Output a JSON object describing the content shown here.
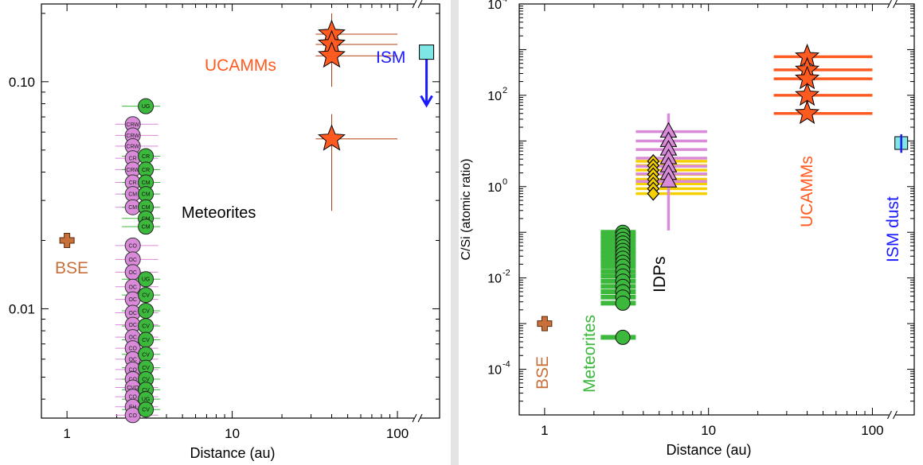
{
  "chart_data": [
    {
      "type": "scatter",
      "xlabel": "Distance (au)",
      "ylabel": "",
      "xscale": "log",
      "yscale": "log",
      "xlim": [
        0.7,
        180
      ],
      "ylim": [
        0.0033,
        0.22
      ],
      "x_ticks": [
        "1",
        "10",
        "100"
      ],
      "y_ticks": [
        "0.10",
        "0.01"
      ],
      "x_break_after": 100,
      "colors": {
        "meteorite_pink": "#d98ad9",
        "meteorite_green": "#3cb83c",
        "ucamm": "#ff5a1f",
        "bse": "#c8703a",
        "ism_fill": "#7fe6e6",
        "ism_arrow": "#1a1aff"
      },
      "annotations": [
        {
          "text": "UCAMMs",
          "color": "#ff5a1f"
        },
        {
          "text": "ISM",
          "color": "#1a1aff"
        },
        {
          "text": "Meteorites",
          "color": "#000000"
        },
        {
          "text": "BSE",
          "color": "#c8703a"
        }
      ],
      "series": [
        {
          "name": "BSE",
          "marker": "cross",
          "points": [
            {
              "x": 1.0,
              "y": 0.02
            }
          ]
        },
        {
          "name": "UCAMMs",
          "marker": "star",
          "xerr": [
            32,
            100
          ],
          "points": [
            {
              "x": 40,
              "y": 0.162
            },
            {
              "x": 40,
              "y": 0.146
            },
            {
              "x": 40,
              "y": 0.13
            },
            {
              "x": 40,
              "y": 0.056
            }
          ],
          "yerr_upper": 0.2,
          "yerr_lower": 0.027
        },
        {
          "name": "ISM",
          "marker": "square",
          "points": [
            {
              "x": 150,
              "y": 0.135
            }
          ],
          "upper_limit_to": 0.08
        },
        {
          "name": "Meteorites (pink)",
          "marker": "circle",
          "labels": [
            "CRW",
            "CRW",
            "CRW",
            "CR",
            "CRW",
            "CR",
            "CM",
            "CM",
            "CO",
            "OC",
            "OC",
            "OC",
            "OC",
            "OC",
            "OC",
            "OC",
            "CO",
            "OC",
            "CO",
            "CO",
            "CVO",
            "CO",
            "EH",
            "CO"
          ],
          "points": [
            {
              "x": 2.5,
              "y": 0.065
            },
            {
              "x": 2.5,
              "y": 0.058
            },
            {
              "x": 2.5,
              "y": 0.052
            },
            {
              "x": 2.5,
              "y": 0.046
            },
            {
              "x": 2.5,
              "y": 0.041
            },
            {
              "x": 2.5,
              "y": 0.036
            },
            {
              "x": 2.5,
              "y": 0.032
            },
            {
              "x": 2.5,
              "y": 0.028
            },
            {
              "x": 2.5,
              "y": 0.019
            },
            {
              "x": 2.5,
              "y": 0.0165
            },
            {
              "x": 2.5,
              "y": 0.0145
            },
            {
              "x": 2.5,
              "y": 0.0125
            },
            {
              "x": 2.5,
              "y": 0.011
            },
            {
              "x": 2.5,
              "y": 0.0096
            },
            {
              "x": 2.5,
              "y": 0.0085
            },
            {
              "x": 2.5,
              "y": 0.0075
            },
            {
              "x": 2.5,
              "y": 0.0067
            },
            {
              "x": 2.5,
              "y": 0.006
            },
            {
              "x": 2.5,
              "y": 0.0054
            },
            {
              "x": 2.5,
              "y": 0.0049
            },
            {
              "x": 2.5,
              "y": 0.0045
            },
            {
              "x": 2.5,
              "y": 0.0041
            },
            {
              "x": 2.5,
              "y": 0.0037
            },
            {
              "x": 2.5,
              "y": 0.0034
            }
          ]
        },
        {
          "name": "Meteorites (green)",
          "marker": "circle",
          "labels": [
            "UG",
            "CR",
            "CR",
            "CM",
            "CM",
            "CM",
            "CM",
            "CM",
            "UG",
            "CV",
            "CV",
            "CV",
            "CV",
            "CV",
            "CV",
            "CV",
            "CV",
            "UG",
            "CV"
          ],
          "points": [
            {
              "x": 3.0,
              "y": 0.078
            },
            {
              "x": 3.0,
              "y": 0.047
            },
            {
              "x": 3.0,
              "y": 0.041
            },
            {
              "x": 3.0,
              "y": 0.036
            },
            {
              "x": 3.0,
              "y": 0.032
            },
            {
              "x": 3.0,
              "y": 0.028
            },
            {
              "x": 3.0,
              "y": 0.025
            },
            {
              "x": 3.0,
              "y": 0.023
            },
            {
              "x": 3.0,
              "y": 0.0135
            },
            {
              "x": 3.0,
              "y": 0.0115
            },
            {
              "x": 3.0,
              "y": 0.0098
            },
            {
              "x": 3.0,
              "y": 0.0084
            },
            {
              "x": 3.0,
              "y": 0.0073
            },
            {
              "x": 3.0,
              "y": 0.0063
            },
            {
              "x": 3.0,
              "y": 0.0055
            },
            {
              "x": 3.0,
              "y": 0.0049
            },
            {
              "x": 3.0,
              "y": 0.0044
            },
            {
              "x": 3.0,
              "y": 0.004
            },
            {
              "x": 3.0,
              "y": 0.0036
            }
          ]
        }
      ]
    },
    {
      "type": "scatter",
      "xlabel": "Distance (au)",
      "ylabel": "C/Si (atomic ratio)",
      "xscale": "log",
      "yscale": "log",
      "xlim": [
        0.7,
        180
      ],
      "ylim": [
        1e-05,
        10000
      ],
      "x_ticks": [
        "1",
        "10",
        "100"
      ],
      "y_ticks": [
        {
          "base": "10",
          "exp": "4"
        },
        {
          "base": "10",
          "exp": "2"
        },
        {
          "base": "10",
          "exp": "0"
        },
        {
          "base": "10",
          "exp": "-2"
        },
        {
          "base": "10",
          "exp": "-4"
        }
      ],
      "y_tick_values": [
        10000,
        100,
        1,
        0.01,
        0.0001
      ],
      "x_break_after": 100,
      "colors": {
        "meteorite_green": "#3cb83c",
        "idp_pink": "#d98ad9",
        "idp_yellow": "#f5d000",
        "ucamm": "#ff5a1f",
        "bse": "#c8703a",
        "ism_fill": "#7fe6e6",
        "ism_bar": "#1a1aff"
      },
      "annotations": [
        {
          "text": "BSE",
          "color": "#c8703a"
        },
        {
          "text": "Meteorites",
          "color": "#3cb83c"
        },
        {
          "text": "IDPs",
          "color": "#000000"
        },
        {
          "text": "UCAMMs",
          "color": "#ff5a1f"
        },
        {
          "text": "ISM dust",
          "color": "#1a1aff"
        }
      ],
      "series": [
        {
          "name": "BSE",
          "marker": "cross",
          "points": [
            {
              "x": 1.0,
              "y": 0.001
            }
          ]
        },
        {
          "name": "Meteorites",
          "marker": "circle",
          "xerr": [
            2.2,
            3.6
          ],
          "points": [
            {
              "x": 3.0,
              "y": 0.1
            },
            {
              "x": 3.0,
              "y": 0.085
            },
            {
              "x": 3.0,
              "y": 0.07
            },
            {
              "x": 3.0,
              "y": 0.058
            },
            {
              "x": 3.0,
              "y": 0.048
            },
            {
              "x": 3.0,
              "y": 0.04
            },
            {
              "x": 3.0,
              "y": 0.033
            },
            {
              "x": 3.0,
              "y": 0.027
            },
            {
              "x": 3.0,
              "y": 0.022
            },
            {
              "x": 3.0,
              "y": 0.018
            },
            {
              "x": 3.0,
              "y": 0.014
            },
            {
              "x": 3.0,
              "y": 0.011
            },
            {
              "x": 3.0,
              "y": 0.0085
            },
            {
              "x": 3.0,
              "y": 0.0065
            },
            {
              "x": 3.0,
              "y": 0.005
            },
            {
              "x": 3.0,
              "y": 0.0038
            },
            {
              "x": 3.0,
              "y": 0.0028
            },
            {
              "x": 3.0,
              "y": 0.0005
            }
          ]
        },
        {
          "name": "IDPs (yellow)",
          "marker": "diamond",
          "xerr": [
            3.6,
            9.8
          ],
          "points": [
            {
              "x": 4.6,
              "y": 3.6
            },
            {
              "x": 4.6,
              "y": 2.9
            },
            {
              "x": 4.6,
              "y": 2.3
            },
            {
              "x": 4.6,
              "y": 1.85
            },
            {
              "x": 4.6,
              "y": 1.45
            },
            {
              "x": 4.6,
              "y": 1.15
            },
            {
              "x": 4.6,
              "y": 0.9
            },
            {
              "x": 4.6,
              "y": 0.7
            }
          ]
        },
        {
          "name": "IDPs (pink)",
          "marker": "triangle",
          "xerr": [
            3.6,
            9.8
          ],
          "yerr_upper": 40,
          "yerr_lower": 0.11,
          "points": [
            {
              "x": 5.7,
              "y": 16
            },
            {
              "x": 5.7,
              "y": 10
            },
            {
              "x": 5.7,
              "y": 6.5
            },
            {
              "x": 5.7,
              "y": 4.2
            },
            {
              "x": 5.7,
              "y": 2.8
            },
            {
              "x": 5.7,
              "y": 1.9
            },
            {
              "x": 5.7,
              "y": 1.3
            }
          ]
        },
        {
          "name": "UCAMMs",
          "marker": "star",
          "xerr": [
            25,
            100
          ],
          "points": [
            {
              "x": 40,
              "y": 700
            },
            {
              "x": 40,
              "y": 360
            },
            {
              "x": 40,
              "y": 230
            },
            {
              "x": 40,
              "y": 100
            },
            {
              "x": 40,
              "y": 40
            }
          ]
        },
        {
          "name": "ISM dust",
          "marker": "square",
          "points": [
            {
              "x": 150,
              "y": 9
            }
          ],
          "yerr_upper": 14,
          "yerr_lower": 5.5
        }
      ]
    }
  ]
}
